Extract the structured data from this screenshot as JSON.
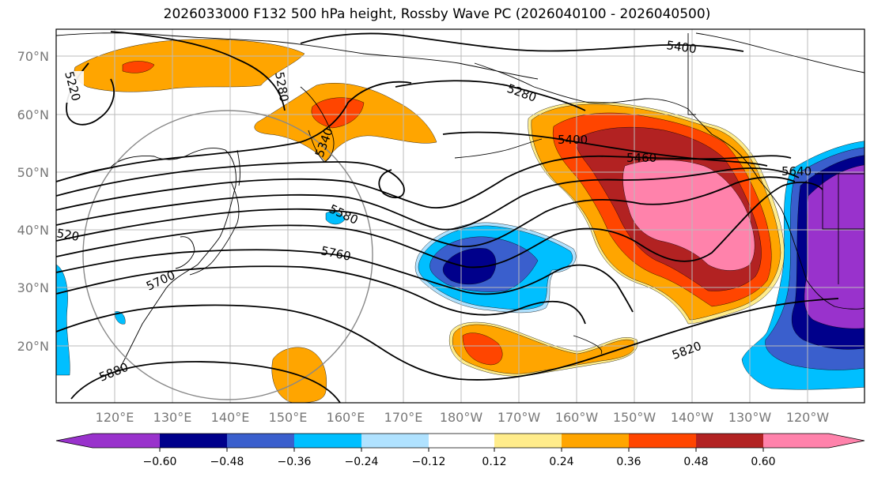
{
  "title": "2026033000 F132 500 hPa height, Rossby Wave PC (2026040100 - 2026040500)",
  "lat_labels": [
    "70°N",
    "60°N",
    "50°N",
    "40°N",
    "30°N",
    "20°N"
  ],
  "lon_labels": [
    "120°E",
    "130°E",
    "140°E",
    "150°E",
    "160°E",
    "170°E",
    "180°W",
    "170°W",
    "160°W",
    "150°W",
    "140°W",
    "130°W",
    "120°W"
  ],
  "contour_labels": [
    "5220",
    "5280",
    "5340",
    "5400",
    "5280",
    "5400",
    "5460",
    "5640",
    "5580",
    "5760",
    "5700",
    "520",
    "5820",
    "5880"
  ],
  "colorbar": {
    "colors": [
      "#9932cc",
      "#00008b",
      "#3a5fcd",
      "#00bfff",
      "#b0e2ff",
      "#ffffff",
      "#ffec8b",
      "#ffa500",
      "#ff4500",
      "#b22222",
      "#ff82ab"
    ],
    "tick_labels": [
      "−0.60",
      "−0.48",
      "−0.36",
      "−0.24",
      "−0.12",
      "0.12",
      "0.24",
      "0.36",
      "0.48",
      "0.60"
    ]
  },
  "shading_colors": {
    "pos_weak": "#ffec8b",
    "pos_mid": "#ffa500",
    "pos_strong": "#ff4500",
    "pos_vstrong": "#b22222",
    "pos_max": "#ff82ab",
    "neg_weak": "#b0e2ff",
    "neg_mid": "#00bfff",
    "neg_strong": "#3a5fcd",
    "neg_vstrong": "#00008b",
    "neg_max": "#9932cc"
  }
}
